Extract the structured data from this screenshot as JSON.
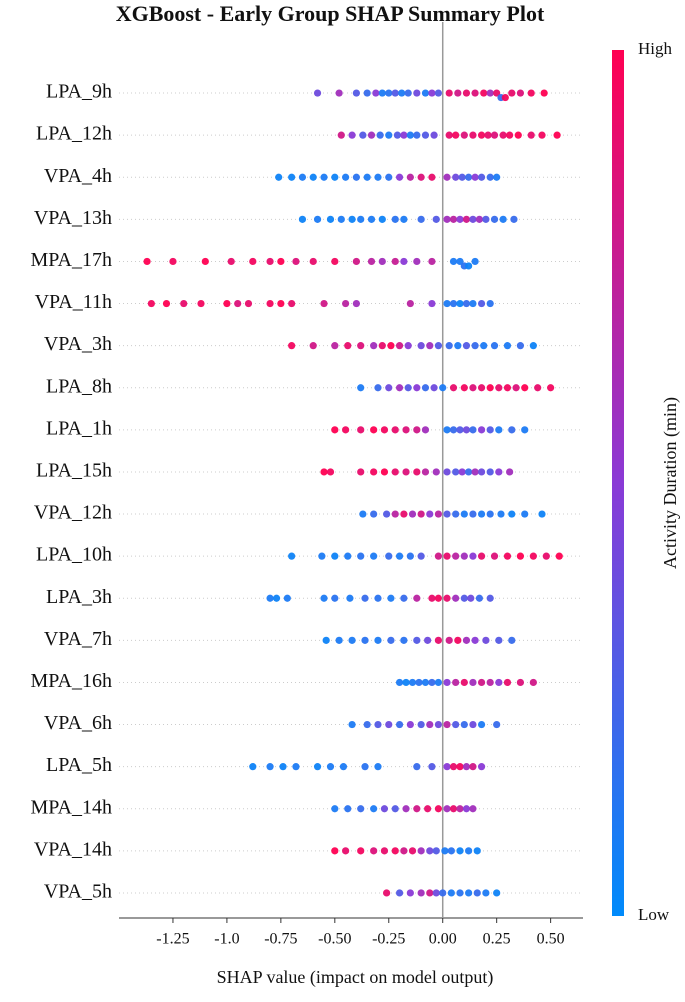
{
  "chart_data": {
    "type": "beeswarm",
    "title": "XGBoost - Early Group SHAP Summary Plot",
    "x_label": "SHAP value (impact on model output)",
    "colorbar_label": "Activity Duration (min)",
    "colorbar_high": "High",
    "colorbar_low": "Low",
    "colormap": [
      "#008bfb",
      "#8a3ad6",
      "#ff0052"
    ],
    "xlim": [
      -1.5,
      0.65
    ],
    "xticks": [
      -1.25,
      {
        "value": -1,
        "label": "-1.0"
      },
      -0.75,
      {
        "value": -0.5,
        "label": "-0.50"
      },
      -0.25,
      {
        "value": 0,
        "label": "0.00"
      },
      0.25,
      {
        "value": 0.5,
        "label": "0.50"
      }
    ],
    "grid": true,
    "series": [
      {
        "name": "LPA_9h",
        "values": [
          -0.58,
          -0.48,
          -0.4,
          -0.35,
          -0.31,
          -0.28,
          -0.25,
          -0.22,
          -0.19,
          -0.16,
          -0.12,
          -0.08,
          -0.05,
          -0.02,
          0.03,
          0.07,
          0.11,
          0.15,
          0.19,
          0.22,
          0.25,
          0.27,
          0.29,
          0.32,
          0.36,
          0.41,
          0.47
        ],
        "feature_values": [
          0.4,
          0.6,
          0.3,
          0.2,
          0.5,
          0.1,
          0.15,
          0.3,
          0.1,
          0.2,
          0.4,
          0.1,
          0.5,
          0.3,
          0.9,
          0.8,
          0.9,
          0.85,
          0.95,
          0.6,
          0.9,
          0.2,
          0.95,
          0.9,
          0.85,
          0.95,
          1
        ]
      },
      {
        "name": "LPA_12h",
        "values": [
          -0.47,
          -0.42,
          -0.37,
          -0.33,
          -0.29,
          -0.25,
          -0.21,
          -0.18,
          -0.15,
          -0.12,
          -0.08,
          -0.04,
          0.03,
          0.06,
          0.1,
          0.14,
          0.18,
          0.21,
          0.24,
          0.28,
          0.31,
          0.35,
          0.41,
          0.46,
          0.53
        ],
        "feature_values": [
          0.8,
          0.5,
          0.3,
          0.6,
          0.2,
          0.1,
          0.3,
          0.5,
          0.1,
          0.2,
          0.3,
          0.4,
          0.9,
          0.95,
          0.85,
          0.9,
          0.95,
          0.9,
          0.85,
          0.9,
          0.95,
          1,
          0.9,
          0.95,
          1
        ]
      },
      {
        "name": "VPA_4h",
        "values": [
          -0.76,
          -0.7,
          -0.65,
          -0.6,
          -0.55,
          -0.5,
          -0.45,
          -0.4,
          -0.35,
          -0.3,
          -0.25,
          -0.2,
          -0.15,
          -0.1,
          -0.05,
          0.02,
          0.06,
          0.09,
          0.12,
          0.15,
          0.18,
          0.22,
          0.25
        ],
        "feature_values": [
          0.05,
          0.05,
          0.1,
          0.05,
          0.1,
          0.05,
          0.1,
          0.15,
          0.1,
          0.1,
          0.15,
          0.5,
          0.7,
          0.85,
          0.9,
          0.6,
          0.4,
          0.3,
          0.2,
          0.5,
          0.3,
          0.2,
          0.1
        ]
      },
      {
        "name": "VPA_13h",
        "values": [
          -0.65,
          -0.58,
          -0.52,
          -0.47,
          -0.42,
          -0.38,
          -0.33,
          -0.28,
          -0.22,
          -0.18,
          -0.1,
          -0.03,
          0.02,
          0.05,
          0.08,
          0.11,
          0.14,
          0.17,
          0.2,
          0.24,
          0.28,
          0.33
        ],
        "feature_values": [
          0.05,
          0.1,
          0.05,
          0.1,
          0.05,
          0.1,
          0.1,
          0.05,
          0.15,
          0.1,
          0.2,
          0.3,
          0.6,
          0.7,
          0.5,
          0.8,
          0.4,
          0.6,
          0.3,
          0.2,
          0.1,
          0.2
        ]
      },
      {
        "name": "MPA_17h",
        "values": [
          -1.37,
          -1.25,
          -1.1,
          -0.98,
          -0.88,
          -0.8,
          -0.75,
          -0.68,
          -0.6,
          -0.5,
          -0.4,
          -0.33,
          -0.28,
          -0.22,
          -0.18,
          -0.12,
          -0.05,
          0.05,
          0.08,
          0.1,
          0.12,
          0.15
        ],
        "feature_values": [
          1,
          0.95,
          1,
          0.9,
          0.95,
          0.9,
          1,
          0.85,
          0.9,
          0.95,
          0.8,
          0.7,
          0.6,
          0.75,
          0.5,
          0.6,
          0.7,
          0.1,
          0.1,
          0.15,
          0.05,
          0.1
        ]
      },
      {
        "name": "VPA_11h",
        "values": [
          -1.35,
          -1.28,
          -1.2,
          -1.12,
          -1.0,
          -0.95,
          -0.9,
          -0.8,
          -0.75,
          -0.7,
          -0.55,
          -0.45,
          -0.4,
          -0.15,
          -0.05,
          0.02,
          0.05,
          0.08,
          0.11,
          0.14,
          0.18,
          0.22
        ],
        "feature_values": [
          0.95,
          1,
          0.9,
          0.95,
          1,
          0.85,
          0.9,
          0.95,
          1,
          0.9,
          0.8,
          0.7,
          0.6,
          0.7,
          0.5,
          0.1,
          0.15,
          0.05,
          0.2,
          0.1,
          0.3,
          0.15
        ]
      },
      {
        "name": "VPA_3h",
        "values": [
          -0.7,
          -0.6,
          -0.5,
          -0.44,
          -0.38,
          -0.32,
          -0.28,
          -0.24,
          -0.2,
          -0.16,
          -0.1,
          -0.06,
          -0.02,
          0.03,
          0.07,
          0.11,
          0.15,
          0.19,
          0.24,
          0.3,
          0.36,
          0.42
        ],
        "feature_values": [
          0.95,
          0.8,
          0.7,
          0.9,
          0.85,
          0.6,
          0.9,
          1,
          0.8,
          0.5,
          0.4,
          0.6,
          0.3,
          0.2,
          0.1,
          0.3,
          0.2,
          0.1,
          0.15,
          0.1,
          0.2,
          0.05
        ]
      },
      {
        "name": "LPA_8h",
        "values": [
          -0.38,
          -0.3,
          -0.25,
          -0.2,
          -0.16,
          -0.12,
          -0.08,
          -0.04,
          0,
          0.05,
          0.1,
          0.14,
          0.18,
          0.22,
          0.26,
          0.3,
          0.34,
          0.38,
          0.44,
          0.5
        ],
        "feature_values": [
          0.1,
          0.2,
          0.4,
          0.6,
          0.3,
          0.5,
          0.2,
          0.4,
          0.1,
          0.9,
          0.95,
          0.85,
          0.9,
          1,
          0.9,
          0.95,
          0.85,
          1,
          0.9,
          0.95
        ]
      },
      {
        "name": "LPA_1h",
        "values": [
          -0.5,
          -0.45,
          -0.38,
          -0.32,
          -0.27,
          -0.22,
          -0.17,
          -0.12,
          -0.08,
          0.02,
          0.05,
          0.08,
          0.11,
          0.14,
          0.18,
          0.22,
          0.26,
          0.32,
          0.38
        ],
        "feature_values": [
          1,
          0.95,
          0.9,
          1,
          0.95,
          0.9,
          0.85,
          0.8,
          0.6,
          0.1,
          0.2,
          0.3,
          0.4,
          0.2,
          0.5,
          0.3,
          0.1,
          0.2,
          0.1
        ]
      },
      {
        "name": "LPA_15h",
        "values": [
          -0.55,
          -0.52,
          -0.38,
          -0.32,
          -0.27,
          -0.22,
          -0.17,
          -0.12,
          -0.08,
          -0.03,
          0.02,
          0.06,
          0.09,
          0.12,
          0.15,
          0.18,
          0.22,
          0.26,
          0.31
        ],
        "feature_values": [
          1,
          0.95,
          0.9,
          0.95,
          1,
          0.9,
          0.85,
          0.9,
          0.7,
          0.6,
          0.4,
          0.3,
          0.5,
          0.2,
          0.6,
          0.4,
          0.3,
          0.5,
          0.6
        ]
      },
      {
        "name": "VPA_12h",
        "values": [
          -0.37,
          -0.32,
          -0.26,
          -0.22,
          -0.18,
          -0.14,
          -0.1,
          -0.06,
          -0.02,
          0.02,
          0.06,
          0.1,
          0.14,
          0.18,
          0.22,
          0.27,
          0.32,
          0.38,
          0.46
        ],
        "feature_values": [
          0.1,
          0.2,
          0.3,
          0.7,
          0.9,
          0.6,
          0.8,
          0.5,
          0.7,
          0.3,
          0.2,
          0.1,
          0.2,
          0.1,
          0.15,
          0.1,
          0.05,
          0.1,
          0.05
        ]
      },
      {
        "name": "LPA_10h",
        "values": [
          -0.7,
          -0.56,
          -0.5,
          -0.44,
          -0.38,
          -0.32,
          -0.25,
          -0.2,
          -0.15,
          -0.1,
          -0.02,
          0.02,
          0.06,
          0.1,
          0.14,
          0.18,
          0.24,
          0.3,
          0.36,
          0.42,
          0.48,
          0.54
        ],
        "feature_values": [
          0.05,
          0.1,
          0.05,
          0.1,
          0.15,
          0.1,
          0.2,
          0.1,
          0.15,
          0.3,
          0.8,
          0.9,
          0.7,
          0.6,
          0.5,
          0.9,
          0.85,
          0.95,
          1,
          0.95,
          0.9,
          1
        ]
      },
      {
        "name": "LPA_3h",
        "values": [
          -0.8,
          -0.77,
          -0.72,
          -0.55,
          -0.5,
          -0.43,
          -0.36,
          -0.3,
          -0.24,
          -0.18,
          -0.12,
          -0.05,
          -0.02,
          0.02,
          0.06,
          0.1,
          0.13,
          0.17,
          0.22
        ],
        "feature_values": [
          0.1,
          0.05,
          0.1,
          0.1,
          0.15,
          0.1,
          0.2,
          0.15,
          0.1,
          0.2,
          0.7,
          0.9,
          0.95,
          0.9,
          0.6,
          0.3,
          0.4,
          0.2,
          0.3
        ]
      },
      {
        "name": "VPA_7h",
        "values": [
          -0.54,
          -0.48,
          -0.42,
          -0.36,
          -0.3,
          -0.24,
          -0.18,
          -0.12,
          -0.07,
          -0.02,
          0.03,
          0.07,
          0.11,
          0.15,
          0.2,
          0.26,
          0.32
        ],
        "feature_values": [
          0.05,
          0.1,
          0.1,
          0.15,
          0.1,
          0.2,
          0.15,
          0.3,
          0.4,
          0.9,
          0.8,
          0.95,
          0.6,
          0.5,
          0.4,
          0.3,
          0.2
        ]
      },
      {
        "name": "MPA_16h",
        "values": [
          -0.2,
          -0.17,
          -0.14,
          -0.11,
          -0.08,
          -0.05,
          -0.02,
          0.02,
          0.06,
          0.1,
          0.14,
          0.18,
          0.22,
          0.26,
          0.3,
          0.36,
          0.42
        ],
        "feature_values": [
          0.1,
          0.05,
          0.1,
          0.15,
          0.1,
          0.2,
          0.1,
          0.5,
          0.7,
          0.9,
          0.6,
          0.8,
          0.7,
          0.5,
          0.9,
          0.85,
          0.8
        ]
      },
      {
        "name": "VPA_6h",
        "values": [
          -0.42,
          -0.35,
          -0.3,
          -0.25,
          -0.2,
          -0.15,
          -0.1,
          -0.06,
          -0.02,
          0.02,
          0.06,
          0.1,
          0.14,
          0.18,
          0.25
        ],
        "feature_values": [
          0.1,
          0.2,
          0.3,
          0.4,
          0.2,
          0.5,
          0.3,
          0.6,
          0.4,
          0.7,
          0.3,
          0.2,
          0.4,
          0.1,
          0.2
        ]
      },
      {
        "name": "LPA_5h",
        "values": [
          -0.88,
          -0.8,
          -0.74,
          -0.68,
          -0.58,
          -0.52,
          -0.46,
          -0.36,
          -0.3,
          -0.12,
          -0.05,
          0.02,
          0.05,
          0.08,
          0.11,
          0.14,
          0.18
        ],
        "feature_values": [
          0.05,
          0.1,
          0.05,
          0.1,
          0.05,
          0.1,
          0.1,
          0.15,
          0.1,
          0.2,
          0.3,
          0.5,
          0.9,
          0.95,
          0.6,
          0.8,
          0.5
        ]
      },
      {
        "name": "MPA_14h",
        "values": [
          -0.5,
          -0.44,
          -0.38,
          -0.32,
          -0.27,
          -0.22,
          -0.17,
          -0.12,
          -0.07,
          -0.02,
          0.02,
          0.05,
          0.08,
          0.11,
          0.14
        ],
        "feature_values": [
          0.1,
          0.15,
          0.2,
          0.1,
          0.4,
          0.3,
          0.6,
          0.8,
          0.9,
          0.95,
          0.6,
          0.9,
          0.7,
          0.5,
          0.6
        ]
      },
      {
        "name": "VPA_14h",
        "values": [
          -0.5,
          -0.45,
          -0.38,
          -0.32,
          -0.27,
          -0.22,
          -0.18,
          -0.14,
          -0.1,
          -0.06,
          -0.03,
          0.01,
          0.04,
          0.08,
          0.12,
          0.16
        ],
        "feature_values": [
          1,
          0.9,
          0.95,
          0.85,
          0.9,
          0.95,
          0.8,
          0.9,
          0.6,
          0.4,
          0.3,
          0.1,
          0.15,
          0.05,
          0.1,
          0.05
        ]
      },
      {
        "name": "VPA_5h",
        "values": [
          -0.26,
          -0.2,
          -0.15,
          -0.1,
          -0.06,
          -0.03,
          0,
          0.04,
          0.08,
          0.12,
          0.16,
          0.2,
          0.25
        ],
        "feature_values": [
          0.9,
          0.3,
          0.5,
          0.6,
          0.8,
          0.4,
          0.2,
          0.1,
          0.15,
          0.1,
          0.2,
          0.1,
          0.05
        ]
      }
    ]
  }
}
